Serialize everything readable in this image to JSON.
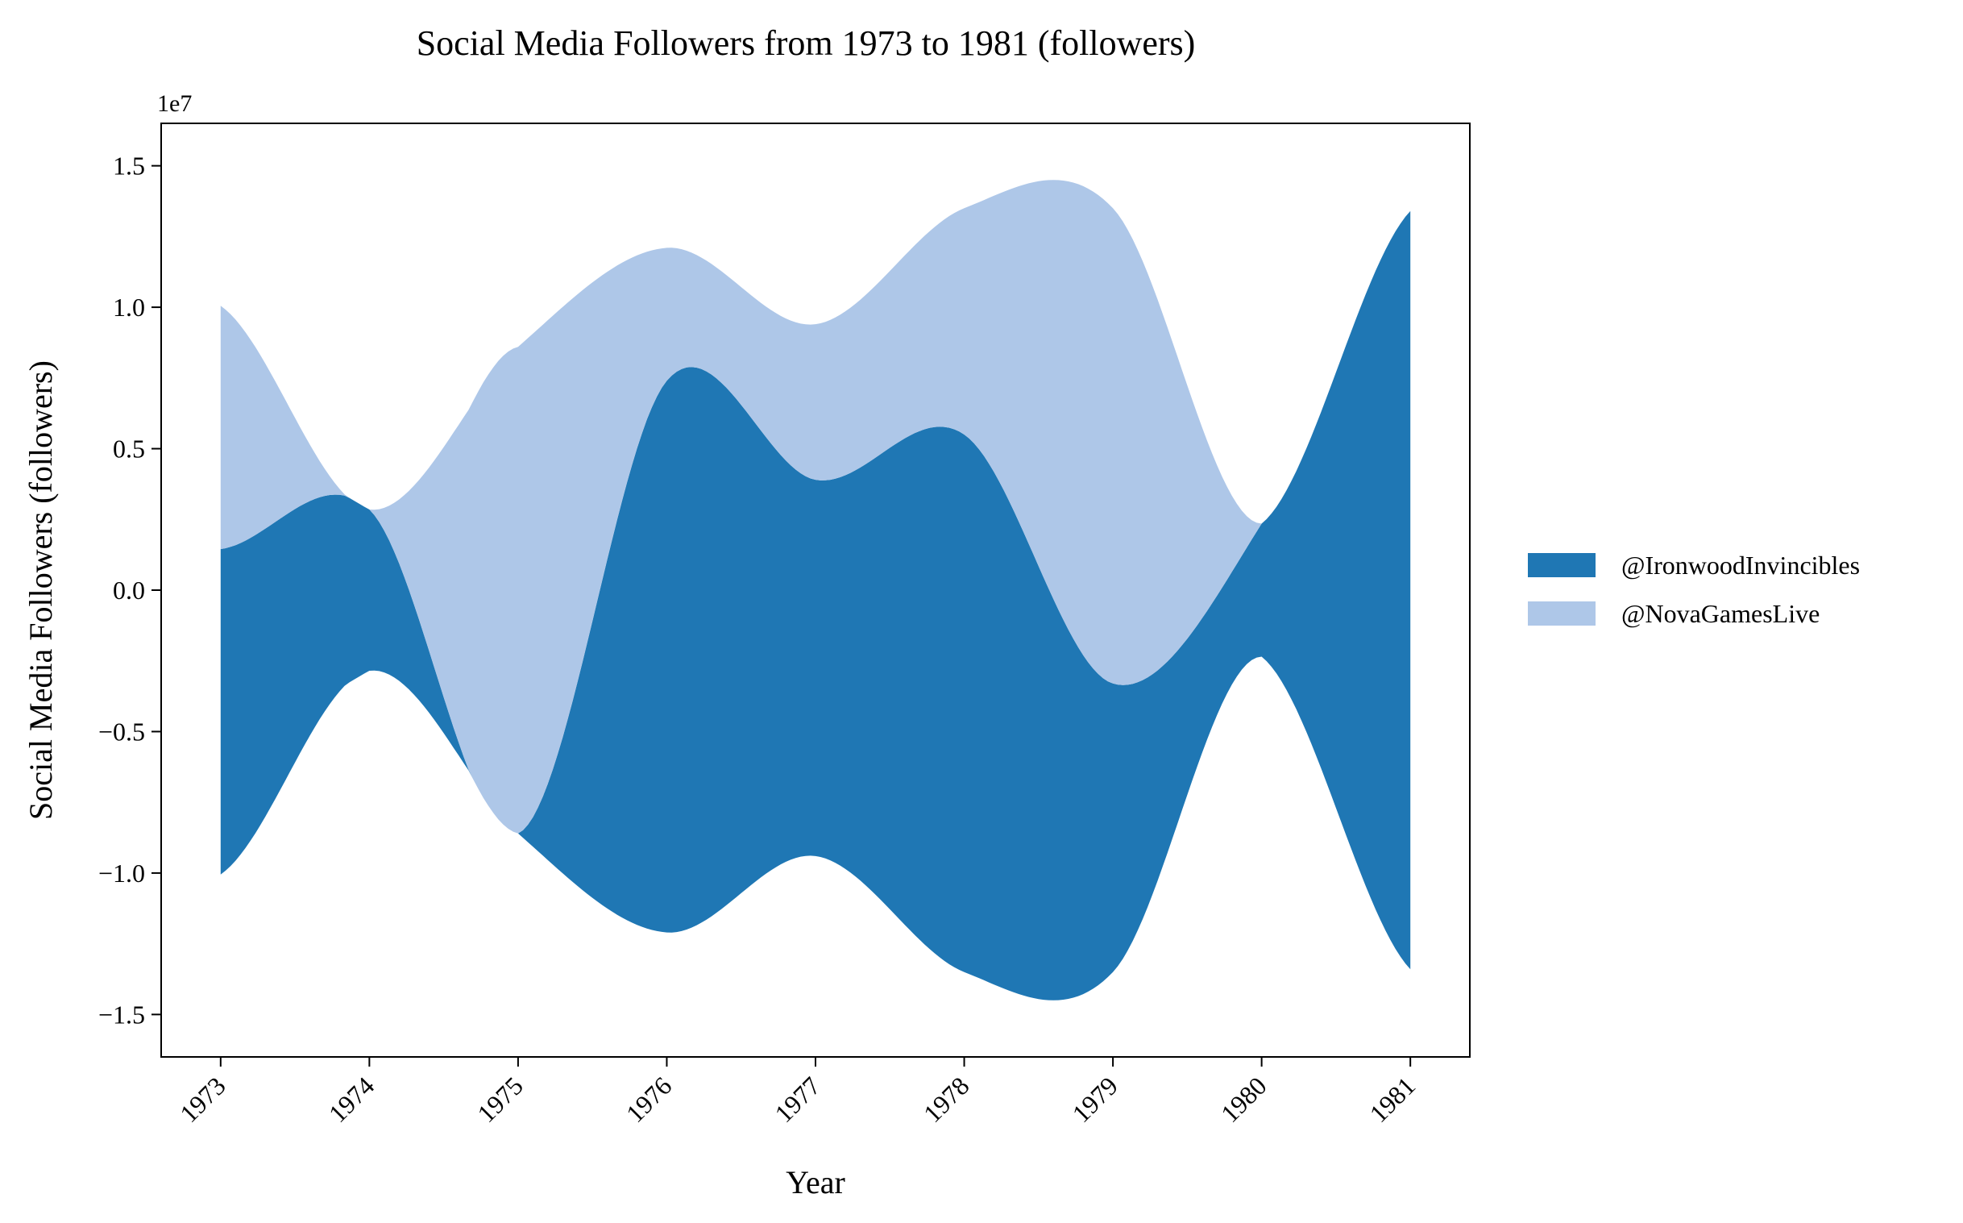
{
  "chart_data": {
    "type": "area",
    "subtype": "streamgraph",
    "title": "Social Media Followers from 1973 to 1981 (followers)",
    "xlabel": "Year",
    "ylabel": "Social Media Followers (followers)",
    "y_offset_text": "1e7",
    "xlim": [
      1972.6,
      1981.4
    ],
    "ylim": [
      -16500000.0,
      16500000.0
    ],
    "xticks": [
      1973,
      1974,
      1975,
      1976,
      1977,
      1978,
      1979,
      1980,
      1981
    ],
    "xtick_labels": [
      "1973",
      "1974",
      "1975",
      "1976",
      "1977",
      "1978",
      "1979",
      "1980",
      "1981"
    ],
    "yticks": [
      -15000000.0,
      -10000000.0,
      -5000000.0,
      0,
      5000000.0,
      10000000.0,
      15000000.0
    ],
    "ytick_labels": [
      "−1.5",
      "−1.0",
      "−0.5",
      "0.0",
      "0.5",
      "1.0",
      "1.5"
    ],
    "grid": false,
    "legend_position": "right",
    "baseline": "symmetric",
    "x": [
      1973,
      1974,
      1975,
      1976,
      1977,
      1978,
      1979,
      1980,
      1981
    ],
    "series": [
      {
        "name": "@IronwoodInvincibles",
        "color": "#1f77b4",
        "values": [
          11500000,
          5700000,
          0,
          19500000,
          13300000,
          19000000,
          10200000,
          4700000,
          26800000
        ]
      },
      {
        "name": "@NovaGamesLive",
        "color": "#aec7e8",
        "values": [
          8600000,
          0,
          17200000,
          4700000,
          5500000,
          8000000,
          16800000,
          0,
          0
        ]
      }
    ]
  }
}
